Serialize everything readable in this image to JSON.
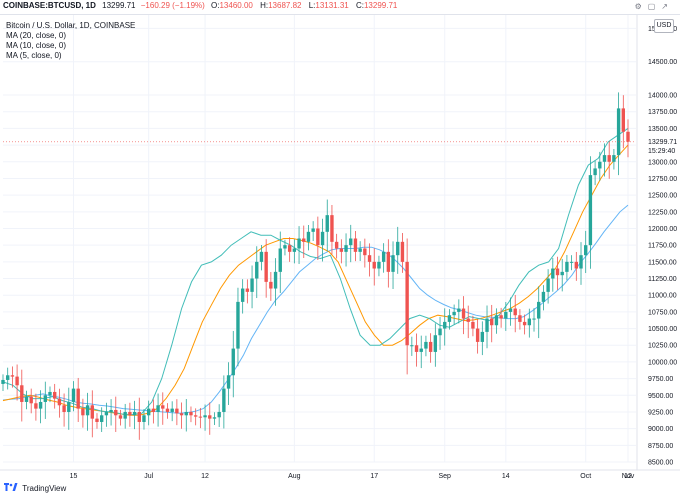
{
  "header": {
    "symbol": "COINBASE:BTCUSD, 1D",
    "last": "13299.71",
    "change": "−160.29 (−1.19%)",
    "o_label": "O:",
    "o_value": "13460.00",
    "h_label": "H:",
    "h_value": "13687.82",
    "l_label": "L:",
    "l_value": "13131.31",
    "c_label": "C:",
    "c_value": "13299.71"
  },
  "legend": {
    "title": "Bitcoin / U.S. Dollar, 1D, COINBASE",
    "ma1": "MA (20, close, 0)",
    "ma2": "MA (10, close, 0)",
    "ma3": "MA (5, close, 0)"
  },
  "currency_badge": "USD",
  "footer": {
    "brand": "TradingView"
  },
  "price_label": {
    "price": "13299.71",
    "time": "15:29:40"
  },
  "colors": {
    "up": "#26a69a",
    "down": "#ef5350",
    "ma20": "#64b5f6",
    "ma10": "#ff9800",
    "ma5": "#42bdb8",
    "grid": "#f0f3fa",
    "axis_text": "#131722"
  },
  "chart_data": {
    "type": "candlestick",
    "ylim": [
      8500,
      15200
    ],
    "yticks": [
      15000,
      14500,
      14000,
      13750,
      13500,
      13250,
      13000,
      12750,
      12500,
      12250,
      12000,
      11750,
      11500,
      11250,
      11000,
      10750,
      10500,
      10250,
      10000,
      9750,
      9500,
      9250,
      9000,
      8750,
      8500
    ],
    "x_tick_labels": [
      {
        "index": 15,
        "label": "15"
      },
      {
        "index": 31,
        "label": "Jul"
      },
      {
        "index": 43,
        "label": "12"
      },
      {
        "index": 62,
        "label": "Aug"
      },
      {
        "index": 79,
        "label": "17"
      },
      {
        "index": 94,
        "label": "Sep"
      },
      {
        "index": 107,
        "label": "14"
      },
      {
        "index": 124,
        "label": "Oct"
      },
      {
        "index": 136,
        "label": "12"
      },
      {
        "index": 155,
        "label": "Nov"
      }
    ],
    "closes": [
      9730,
      9800,
      9780,
      9650,
      9400,
      9480,
      9380,
      9300,
      9400,
      9500,
      9550,
      9450,
      9350,
      9250,
      9400,
      9600,
      9300,
      9200,
      9350,
      9150,
      9100,
      9200,
      9250,
      9280,
      9200,
      9150,
      9250,
      9200,
      9250,
      9100,
      9200,
      9300,
      9250,
      9350,
      9300,
      9250,
      9300,
      9230,
      9200,
      9250,
      9200,
      9180,
      9170,
      9200,
      9150,
      9170,
      9250,
      9600,
      9800,
      10200,
      10900,
      11100,
      11050,
      11250,
      11500,
      11650,
      11200,
      11100,
      11350,
      11700,
      11750,
      11650,
      11700,
      11850,
      11800,
      11950,
      12000,
      11750,
      11950,
      12200,
      11800,
      11700,
      11650,
      11750,
      11850,
      11650,
      11700,
      11600,
      11500,
      11400,
      11500,
      11650,
      11350,
      11600,
      11800,
      11500,
      10250,
      10250,
      10150,
      10200,
      10300,
      10150,
      10400,
      10500,
      10600,
      10700,
      10750,
      10800,
      10650,
      10600,
      10500,
      10300,
      10450,
      10650,
      10550,
      10700,
      10650,
      10750,
      10800,
      10700,
      10600,
      10550,
      10650,
      10650,
      10900,
      11050,
      11250,
      11400,
      11300,
      11350,
      11500,
      11500,
      11400,
      11600,
      11750,
      12800,
      12900,
      13000,
      13100,
      13000,
      13100,
      13800,
      13450,
      13300
    ],
    "ma20_values": [
      9430,
      9440,
      9450,
      9480,
      9500,
      9520,
      9490,
      9470,
      9440,
      9400,
      9380,
      9370,
      9350,
      9340,
      9320,
      9300,
      9290,
      9280,
      9270,
      9260,
      9250,
      9240,
      9230,
      9240,
      9260,
      9300,
      9400,
      9550,
      9720,
      9900,
      10100,
      10350,
      10550,
      10750,
      10920,
      11050,
      11200,
      11350,
      11450,
      11550,
      11620,
      11680,
      11700,
      11700,
      11700,
      11720,
      11720,
      11680,
      11620,
      11520,
      11400,
      11250,
      11100,
      11000,
      10920,
      10860,
      10810,
      10780,
      10740,
      10700,
      10680,
      10670,
      10660,
      10650,
      10650,
      10680,
      10760,
      10850,
      10950,
      11050,
      11160,
      11300,
      11480,
      11620,
      11780,
      11950,
      12100,
      12250,
      12350
    ],
    "ma10_values": [
      9420,
      9450,
      9480,
      9500,
      9470,
      9430,
      9400,
      9350,
      9320,
      9300,
      9280,
      9260,
      9240,
      9220,
      9200,
      9200,
      9230,
      9300,
      9450,
      9650,
      9900,
      10250,
      10600,
      10850,
      11100,
      11300,
      11450,
      11550,
      11650,
      11750,
      11800,
      11850,
      11850,
      11820,
      11780,
      11720,
      11650,
      11500,
      11200,
      10900,
      10600,
      10400,
      10250,
      10250,
      10320,
      10430,
      10550,
      10650,
      10700,
      10680,
      10650,
      10620,
      10630,
      10660,
      10700,
      10750,
      10800,
      10880,
      10980,
      11100,
      11250,
      11400,
      11650,
      11950,
      12250,
      12500,
      12750,
      12950,
      13100,
      13250
    ],
    "ma5_values": [
      9700,
      9650,
      9520,
      9450,
      9450,
      9480,
      9420,
      9380,
      9320,
      9300,
      9260,
      9250,
      9220,
      9210,
      9230,
      9400,
      9750,
      10250,
      10800,
      11200,
      11450,
      11500,
      11600,
      11750,
      11850,
      11950,
      11900,
      11900,
      11820,
      11750,
      11650,
      11580,
      11550,
      11600,
      11250,
      10800,
      10400,
      10250,
      10250,
      10350,
      10500,
      10650,
      10700,
      10650,
      10550,
      10520,
      10600,
      10680,
      10650,
      10620,
      10700,
      10900,
      11150,
      11350,
      11450,
      11500,
      11700,
      12200,
      12650,
      12950,
      13050,
      13300,
      13400,
      13500
    ]
  }
}
